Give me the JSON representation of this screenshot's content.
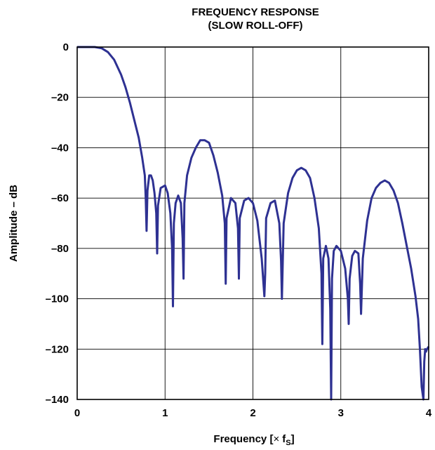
{
  "chart_data": {
    "type": "line",
    "title": "FREQUENCY RESPONSE",
    "subtitle": "(SLOW ROLL-OFF)",
    "xlabel_main": "Frequency [",
    "xlabel_symbol": "×",
    "xlabel_var": "f",
    "xlabel_sub": "S",
    "xlabel_close": "]",
    "ylabel": "Amplitude – dB",
    "xlim": [
      0,
      4
    ],
    "ylim": [
      -140,
      0
    ],
    "grid": true,
    "x_ticks": [
      0,
      1,
      2,
      3,
      4
    ],
    "x_tick_labels": [
      "0",
      "1",
      "2",
      "3",
      "4"
    ],
    "y_ticks": [
      0,
      -20,
      -40,
      -60,
      -80,
      -100,
      -120,
      -140
    ],
    "y_tick_labels": [
      "0",
      "–20",
      "–40",
      "–60",
      "–80",
      "–100",
      "–120",
      "–140"
    ],
    "series": [
      {
        "color": "#2e3192",
        "x": [
          0,
          0.1,
          0.2,
          0.28,
          0.35,
          0.42,
          0.5,
          0.55,
          0.6,
          0.65,
          0.7,
          0.74,
          0.77,
          0.78,
          0.79,
          0.8,
          0.82,
          0.84,
          0.86,
          0.88,
          0.9,
          0.91,
          0.92,
          0.95,
          1.0,
          1.03,
          1.06,
          1.08,
          1.09,
          1.1,
          1.12,
          1.15,
          1.18,
          1.2,
          1.21,
          1.22,
          1.25,
          1.3,
          1.35,
          1.4,
          1.45,
          1.5,
          1.55,
          1.6,
          1.65,
          1.68,
          1.69,
          1.7,
          1.75,
          1.8,
          1.83,
          1.84,
          1.85,
          1.9,
          1.95,
          2.0,
          2.05,
          2.1,
          2.13,
          2.14,
          2.15,
          2.2,
          2.25,
          2.3,
          2.32,
          2.33,
          2.35,
          2.4,
          2.45,
          2.5,
          2.55,
          2.6,
          2.65,
          2.7,
          2.75,
          2.78,
          2.79,
          2.8,
          2.83,
          2.86,
          2.88,
          2.89,
          2.9,
          2.92,
          2.95,
          3.0,
          3.05,
          3.08,
          3.09,
          3.1,
          3.13,
          3.16,
          3.2,
          3.22,
          3.23,
          3.25,
          3.3,
          3.35,
          3.4,
          3.45,
          3.5,
          3.55,
          3.6,
          3.65,
          3.7,
          3.75,
          3.8,
          3.85,
          3.88,
          3.9,
          3.92,
          3.94,
          3.95,
          3.96,
          3.97,
          3.98,
          4.0
        ],
        "y": [
          0,
          0,
          0,
          -0.5,
          -2,
          -5,
          -11,
          -16,
          -22,
          -29,
          -36,
          -44,
          -51,
          -60,
          -73,
          -57,
          -51,
          -51,
          -53,
          -58,
          -66,
          -82,
          -63,
          -56,
          -55,
          -58,
          -66,
          -80,
          -103,
          -70,
          -62,
          -59,
          -62,
          -76,
          -92,
          -62,
          -51,
          -44,
          -40,
          -37,
          -37,
          -38,
          -43,
          -50,
          -59,
          -70,
          -94,
          -68,
          -60,
          -62,
          -72,
          -92,
          -68,
          -61,
          -60,
          -62,
          -69,
          -84,
          -99,
          -90,
          -68,
          -62,
          -61,
          -70,
          -85,
          -100,
          -70,
          -58,
          -52,
          -49,
          -48,
          -49,
          -52,
          -60,
          -72,
          -90,
          -118,
          -84,
          -79,
          -84,
          -104,
          -140,
          -92,
          -81,
          -79,
          -81,
          -88,
          -100,
          -110,
          -92,
          -83,
          -81,
          -82,
          -94,
          -106,
          -84,
          -69,
          -60,
          -56,
          -54,
          -53,
          -54,
          -57,
          -62,
          -70,
          -79,
          -88,
          -99,
          -108,
          -120,
          -135,
          -140,
          -125,
          -120,
          -121,
          -120,
          -119
        ]
      }
    ]
  }
}
